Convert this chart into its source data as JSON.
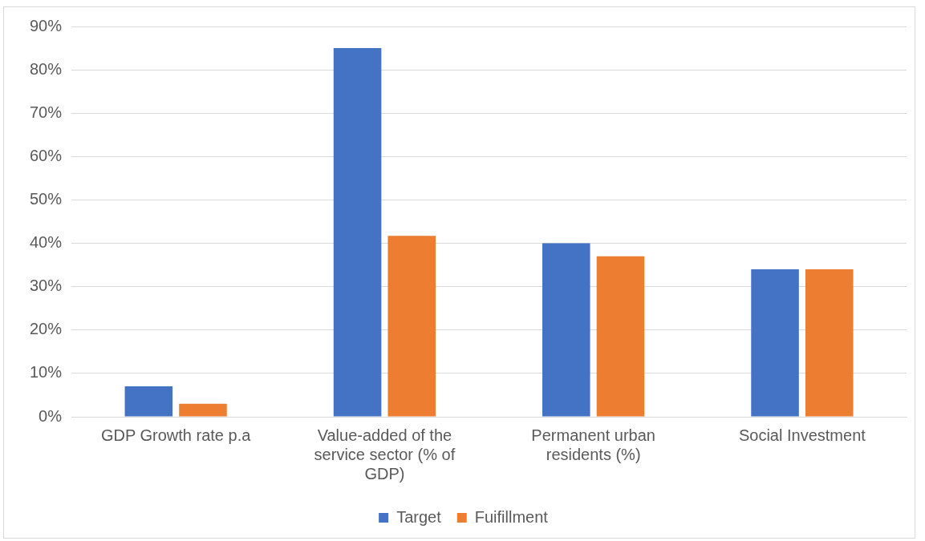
{
  "chart_data": {
    "type": "bar",
    "categories": [
      "GDP Growth rate p.a",
      "Value-added of the service sector (% of GDP)",
      "Permanent urban residents (%)",
      "Social Investment"
    ],
    "series": [
      {
        "name": "Target",
        "color": "#4472c4",
        "values": [
          7,
          85,
          40,
          34
        ]
      },
      {
        "name": "Fuifillment",
        "color": "#ed7d31",
        "values": [
          3,
          41.7,
          37,
          34
        ]
      }
    ],
    "ylim": [
      0,
      90
    ],
    "yticks": [
      {
        "value": 0,
        "label": "0%"
      },
      {
        "value": 10,
        "label": "10%"
      },
      {
        "value": 20,
        "label": "20%"
      },
      {
        "value": 30,
        "label": "30%"
      },
      {
        "value": 40,
        "label": "40%"
      },
      {
        "value": 50,
        "label": "50%"
      },
      {
        "value": 60,
        "label": "60%"
      },
      {
        "value": 70,
        "label": "70%"
      },
      {
        "value": 80,
        "label": "80%"
      },
      {
        "value": 90,
        "label": "90%"
      }
    ],
    "grid": "y",
    "legend": "bottom"
  }
}
